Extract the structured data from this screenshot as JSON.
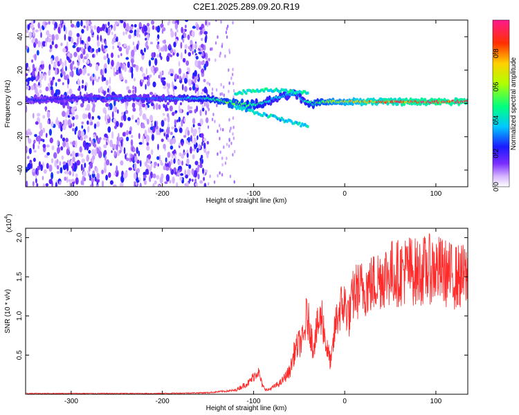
{
  "title": "C2E1.2025.289.09.20.R19",
  "colors": {
    "snr_line": "#ff2a2a",
    "axis": "#000000",
    "background": "#ffffff"
  },
  "chart_data": [
    {
      "type": "heatmap",
      "xlabel": "Height of straight line (km)",
      "ylabel": "Frequency (Hz)",
      "xlim": [
        -350,
        135
      ],
      "ylim": [
        -50,
        50
      ],
      "xticks": [
        -300,
        -200,
        -100,
        0,
        100
      ],
      "xtick_labels": [
        "-300",
        "-200",
        "-100",
        "0",
        "100"
      ],
      "yticks": [
        -40,
        -20,
        0,
        20,
        40
      ],
      "ytick_labels": [
        "-40",
        "-20",
        "0",
        "20",
        "40"
      ],
      "colorbar": {
        "label": "Normalized spectral amplitude",
        "range": [
          0,
          1
        ],
        "ticks": [
          0.0,
          0.2,
          0.4,
          0.6,
          0.8
        ],
        "tick_labels": [
          "0.0",
          "0.2",
          "0.4",
          "0.6",
          "0.8"
        ],
        "colormap": "rainbow (white-purple-blue-cyan-green-yellow-red-magenta)"
      },
      "features": {
        "noise_region_x": [
          -350,
          -150
        ],
        "signal_track": [
          {
            "x": -340,
            "y": 2,
            "amp": 0.25
          },
          {
            "x": -300,
            "y": 3,
            "amp": 0.25
          },
          {
            "x": -250,
            "y": 3,
            "amp": 0.3
          },
          {
            "x": -200,
            "y": 3,
            "amp": 0.3
          },
          {
            "x": -150,
            "y": 3,
            "amp": 0.45
          },
          {
            "x": -130,
            "y": 1,
            "amp": 0.55
          },
          {
            "x": -110,
            "y": -1,
            "amp": 0.55
          },
          {
            "x": -90,
            "y": 0,
            "amp": 0.45
          },
          {
            "x": -70,
            "y": 4,
            "amp": 0.4
          },
          {
            "x": -55,
            "y": 6,
            "amp": 0.35
          },
          {
            "x": -40,
            "y": 0,
            "amp": 0.45
          },
          {
            "x": -20,
            "y": 1,
            "amp": 0.6
          },
          {
            "x": 0,
            "y": 1,
            "amp": 0.7
          },
          {
            "x": 30,
            "y": 1,
            "amp": 0.85
          },
          {
            "x": 60,
            "y": 1,
            "amp": 0.9
          },
          {
            "x": 100,
            "y": 1,
            "amp": 0.95
          },
          {
            "x": 135,
            "y": 1,
            "amp": 0.95
          }
        ]
      }
    },
    {
      "type": "line",
      "xlabel": "Height of straight line (km)",
      "ylabel": "SNR (10 * v/v)",
      "y_multiplier_label": "(x10",
      "y_multiplier_exp": "4",
      "y_multiplier_close": ")",
      "xlim": [
        -350,
        135
      ],
      "ylim": [
        0,
        2.12
      ],
      "xticks": [
        -300,
        -200,
        -100,
        0,
        100
      ],
      "xtick_labels": [
        "-300",
        "-200",
        "-100",
        "0",
        "100"
      ],
      "yticks": [
        0.5,
        1.0,
        1.5,
        2.0
      ],
      "ytick_labels": [
        "0.5",
        "1.0",
        "1.5",
        "2.0"
      ],
      "series": [
        {
          "x": [
            -350,
            -300,
            -250,
            -200,
            -150,
            -120,
            -105,
            -95,
            -90,
            -85,
            -80,
            -70,
            -60,
            -55,
            -50,
            -45,
            -42,
            -38,
            -35,
            -30,
            -25,
            -20,
            -15,
            -10,
            -5,
            0,
            5,
            10,
            20,
            30,
            40,
            50,
            60,
            70,
            80,
            90,
            100,
            110,
            120,
            135
          ],
          "values": [
            0.01,
            0.01,
            0.01,
            0.01,
            0.02,
            0.05,
            0.15,
            0.3,
            0.1,
            0.05,
            0.08,
            0.15,
            0.3,
            0.55,
            0.65,
            0.7,
            1.0,
            0.85,
            0.6,
            0.85,
            1.0,
            0.6,
            0.4,
            0.9,
            1.1,
            1.15,
            1.0,
            1.3,
            1.35,
            1.4,
            1.5,
            1.55,
            1.55,
            1.6,
            1.55,
            1.6,
            1.6,
            1.55,
            1.5,
            1.5
          ]
        }
      ]
    }
  ]
}
